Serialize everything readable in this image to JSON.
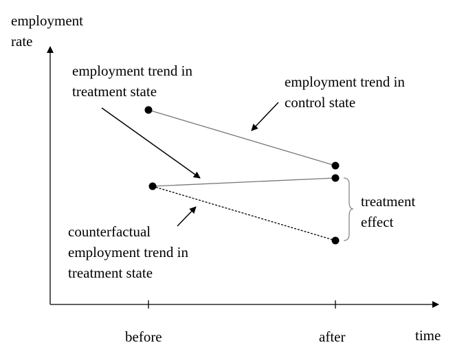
{
  "axes": {
    "y_label_line1": "employment",
    "y_label_line2": "rate",
    "x_label": "time",
    "x_ticks": [
      "before",
      "after"
    ]
  },
  "labels": {
    "treatment_trend": [
      "employment trend in",
      "treatment state"
    ],
    "control_trend": [
      "employment trend in",
      "control state"
    ],
    "treatment_effect": [
      "treatment",
      "effect"
    ],
    "counterfactual": [
      "counterfactual",
      "employment trend in",
      "treatment state"
    ]
  },
  "colors": {
    "ink": "#000000",
    "trend_line": "#777777",
    "bracket": "#888888"
  }
}
